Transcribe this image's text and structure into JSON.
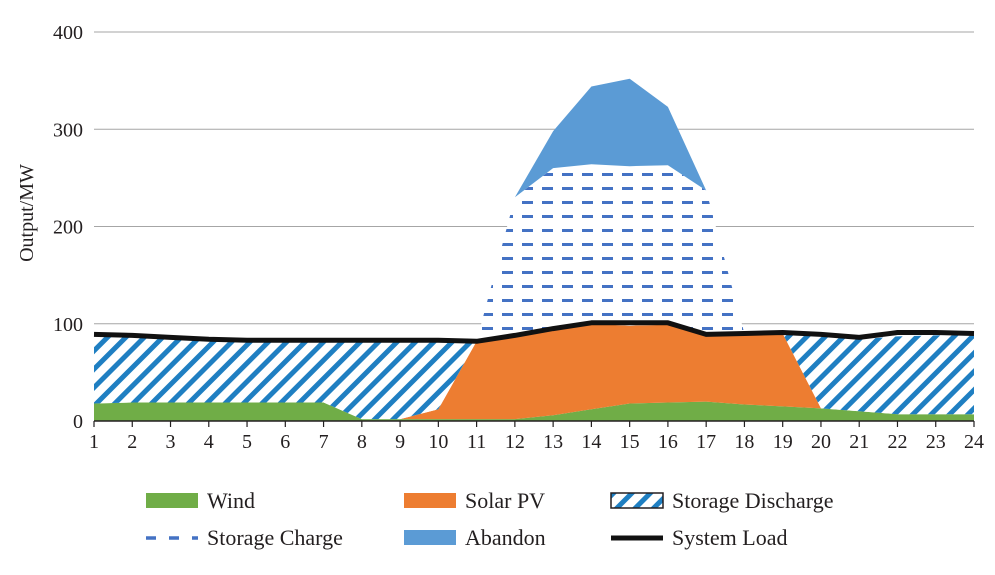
{
  "chart_data": {
    "type": "area",
    "title": "",
    "xlabel": "",
    "ylabel": "Output/MW",
    "ylim": [
      0,
      400
    ],
    "yticks": [
      0,
      100,
      200,
      300,
      400
    ],
    "grid": true,
    "legend_position": "bottom",
    "x": [
      1,
      2,
      3,
      4,
      5,
      6,
      7,
      8,
      9,
      10,
      11,
      12,
      13,
      14,
      15,
      16,
      17,
      18,
      19,
      20,
      21,
      22,
      23,
      24
    ],
    "x_tick_labels": [
      "1",
      "2",
      "3",
      "4",
      "5",
      "6",
      "7",
      "8",
      "9",
      "10",
      "11",
      "12",
      "13",
      "14",
      "15",
      "16",
      "17",
      "18",
      "19",
      "20",
      "21",
      "22",
      "23",
      "24"
    ],
    "series": [
      {
        "name": "Wind",
        "kind": "stacked-area",
        "color": "#70ad47",
        "values": [
          18,
          19,
          19,
          19,
          19,
          19,
          19,
          2,
          2,
          2,
          2,
          2,
          6,
          12,
          18,
          19,
          20,
          17,
          15,
          13,
          10,
          7,
          7,
          7
        ]
      },
      {
        "name": "Solar PV",
        "kind": "stacked-area",
        "color": "#ed7d31",
        "values": [
          0,
          0,
          0,
          0,
          0,
          0,
          0,
          0,
          0,
          10,
          80,
          86,
          88,
          88,
          80,
          80,
          69,
          73,
          75,
          0,
          0,
          0,
          0,
          0
        ]
      },
      {
        "name": "Storage Discharge",
        "kind": "stacked-area-hatched",
        "color": "#2e75b6",
        "values": [
          70,
          68,
          66,
          63,
          62,
          62,
          62,
          80,
          80,
          70,
          0,
          0,
          0,
          0,
          0,
          0,
          0,
          0,
          0,
          75,
          74,
          80,
          81,
          81
        ]
      },
      {
        "name": "Storage Charge",
        "kind": "stacked-area-dashed",
        "color": "#4472c4",
        "values": [
          0,
          0,
          0,
          0,
          0,
          0,
          0,
          0,
          0,
          0,
          0,
          142,
          166,
          164,
          164,
          164,
          148,
          0,
          0,
          0,
          0,
          0,
          0,
          0
        ]
      },
      {
        "name": "Abandon",
        "kind": "stacked-area",
        "color": "#5b9bd5",
        "values": [
          0,
          0,
          0,
          0,
          0,
          0,
          0,
          0,
          0,
          0,
          0,
          0,
          38,
          80,
          90,
          60,
          0,
          0,
          0,
          0,
          0,
          0,
          0,
          0
        ]
      },
      {
        "name": "System Load",
        "kind": "line",
        "color": "#111111",
        "values": [
          89,
          88,
          86,
          84,
          83,
          83,
          83,
          83,
          83,
          83,
          82,
          88,
          95,
          101,
          101,
          101,
          89,
          90,
          91,
          89,
          86,
          91,
          91,
          90
        ]
      }
    ]
  }
}
